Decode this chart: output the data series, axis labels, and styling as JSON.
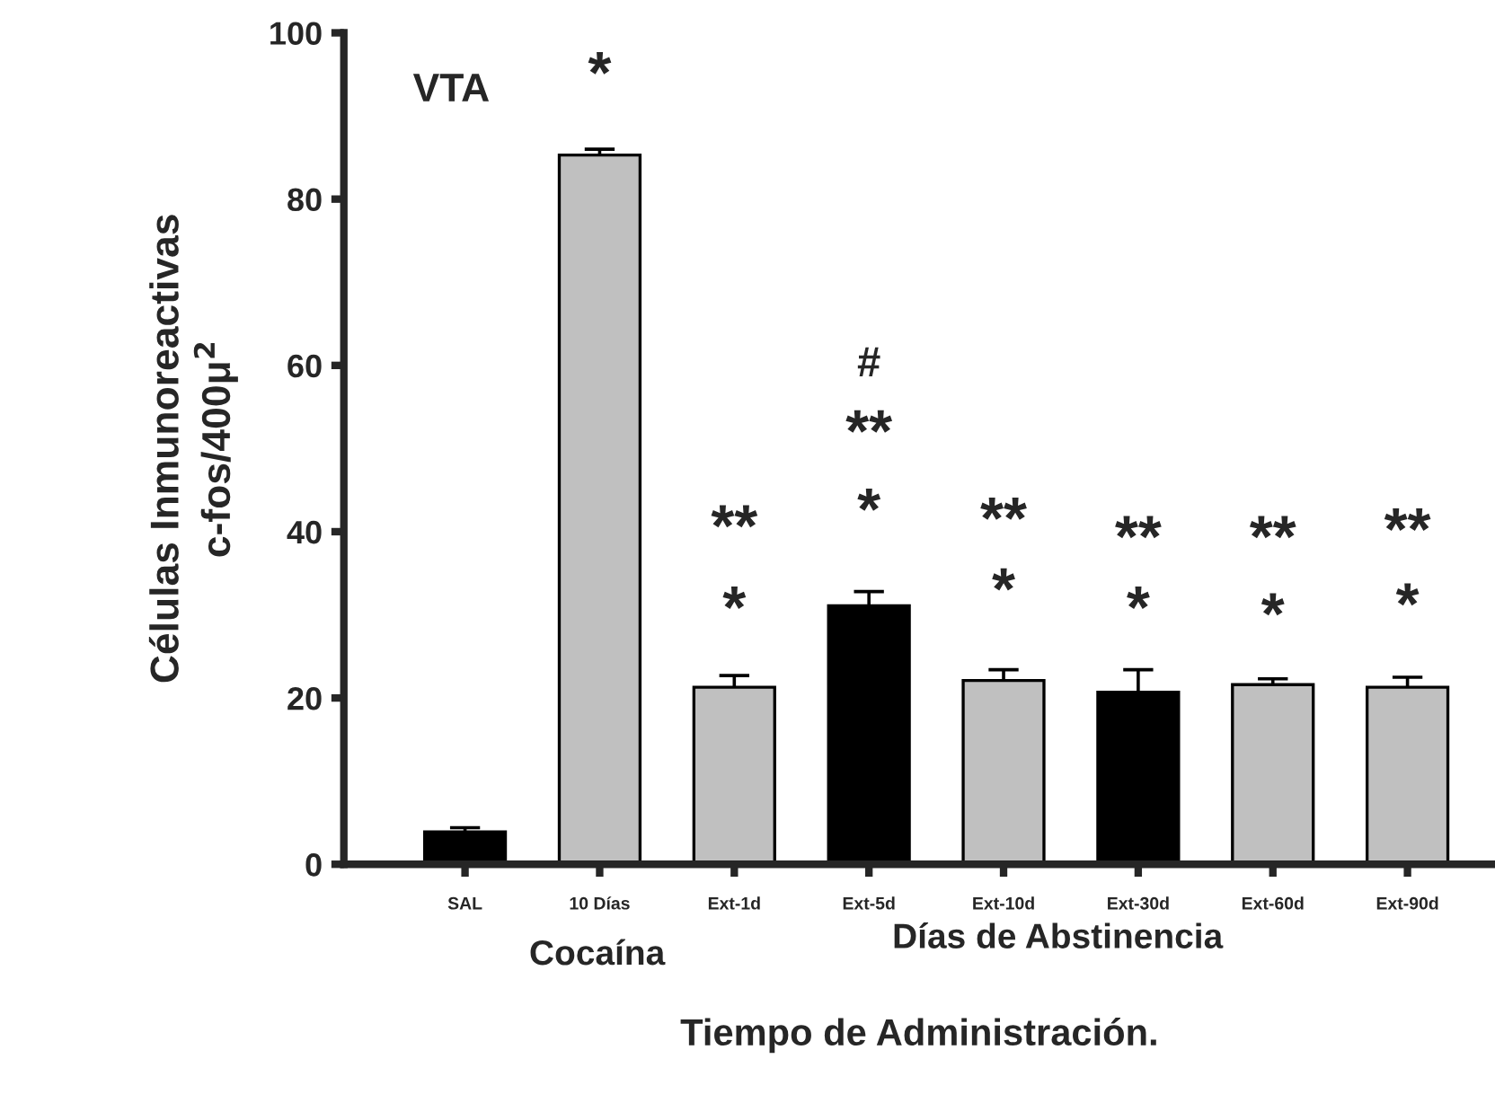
{
  "chart_data": {
    "type": "bar",
    "xlabel": "Tiempo de Administración.",
    "ylabel": "Células Inmunoreactivas\nc-fos/400μ$^{2}$",
    "categories": [
      "SAL",
      "10 Días",
      "Ext-1d",
      "Ext-5d",
      "Ext-10d",
      "Ext-30d",
      "Ext-60d",
      "Ext-90d"
    ],
    "values": [
      3.9,
      85.3,
      21.3,
      31.1,
      22.1,
      20.7,
      21.6,
      21.3
    ],
    "errors": [
      0.5,
      0.7,
      1.4,
      1.7,
      1.3,
      2.7,
      0.7,
      1.2
    ],
    "colors": [
      "#000000",
      "#c0c0c0",
      "#c0c0c0",
      "#000000",
      "#c0c0c0",
      "#000000",
      "#c0c0c0",
      "#c0c0c0"
    ],
    "ylim": [
      0,
      100
    ],
    "yticks": [
      0,
      20,
      40,
      60,
      80,
      100
    ],
    "grid": false,
    "legend": false,
    "annotations": [
      "VTA",
      "Cocaína",
      "Días de Abstinencia",
      "*",
      "**",
      "*",
      "#",
      "**",
      "*",
      "**",
      "*",
      "**",
      "*",
      "**",
      "*",
      "**",
      "*"
    ]
  }
}
